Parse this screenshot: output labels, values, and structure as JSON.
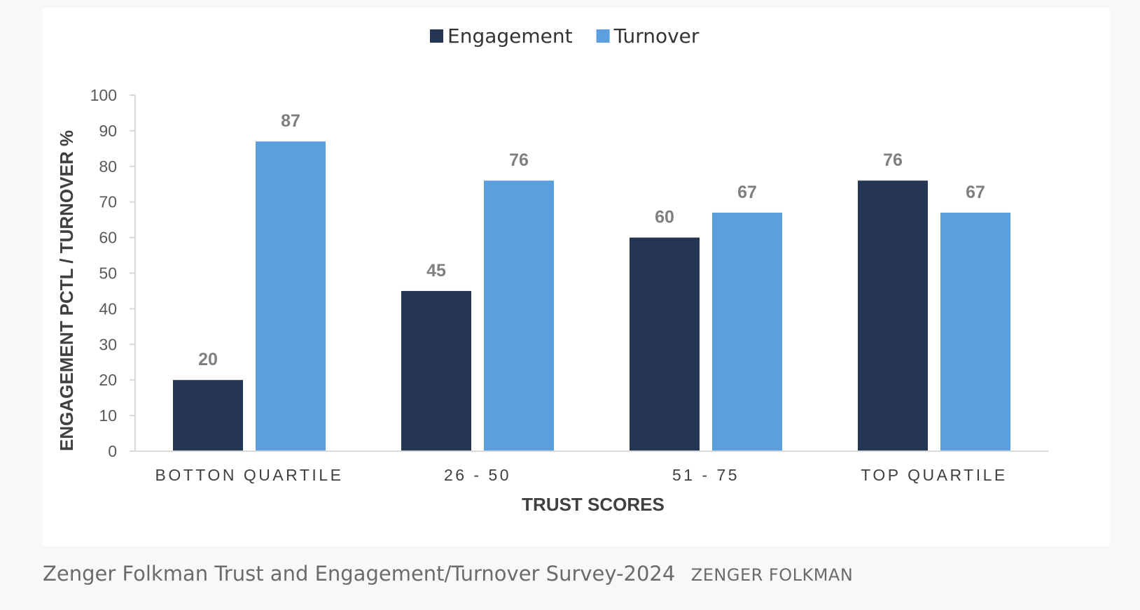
{
  "caption": {
    "text": "Zenger Folkman Trust and Engagement/Turnover Survey-2024",
    "credit": "ZENGER FOLKMAN"
  },
  "colors": {
    "engagement": "#253654",
    "turnover": "#5b9fde",
    "axis": "#d9d9d9"
  },
  "chart_data": {
    "type": "bar",
    "categories": [
      "BOTTON QUARTILE",
      "26 - 50",
      "51 - 75",
      "TOP QUARTILE"
    ],
    "series": [
      {
        "name": "Engagement",
        "values": [
          20,
          45,
          60,
          76
        ]
      },
      {
        "name": "Turnover",
        "values": [
          87,
          76,
          67,
          67
        ]
      }
    ],
    "title": "",
    "xlabel": "TRUST SCORES",
    "ylabel": "ENGAGEMENT PCTL / TURNOVER %",
    "ylim": [
      0,
      100
    ],
    "yticks": [
      0,
      10,
      20,
      30,
      40,
      50,
      60,
      70,
      80,
      90,
      100
    ],
    "grid": false,
    "legend": "top-center",
    "data_labels": true
  }
}
